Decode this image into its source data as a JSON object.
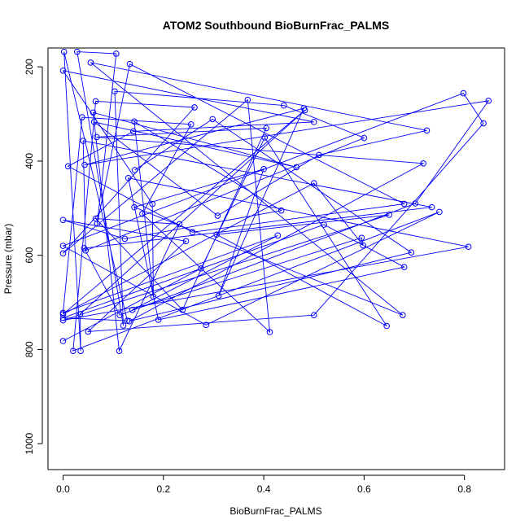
{
  "chart_data": {
    "type": "line",
    "title": "ATOM2 Southbound BioBurnFrac_PALMS",
    "xlabel": "BioBurnFrac_PALMS",
    "ylabel": "Pressure (mbar)",
    "xlim": [
      -0.03,
      0.88
    ],
    "ylim": [
      1055,
      160
    ],
    "y_reversed": true,
    "x_ticks": [
      "0.0",
      "0.2",
      "0.4",
      "0.6",
      "0.8"
    ],
    "y_ticks": [
      "200",
      "400",
      "600",
      "800",
      "1000"
    ],
    "grid": false,
    "legend": "none",
    "color": "#0000ff",
    "marker": "open-circle",
    "series": [
      {
        "points": [
          [
            0.0,
            782
          ],
          [
            0.0,
            738
          ],
          [
            0.0,
            733
          ],
          [
            0.0,
            725
          ],
          [
            0.0,
            722
          ],
          [
            0.0,
            596
          ],
          [
            0.0,
            580
          ],
          [
            0.0,
            525
          ],
          [
            0.0,
            208
          ],
          [
            0.002,
            168
          ],
          [
            0.01,
            411
          ],
          [
            0.02,
            803
          ],
          [
            0.028,
            168
          ],
          [
            0.034,
            725
          ],
          [
            0.035,
            803
          ],
          [
            0.038,
            307
          ],
          [
            0.04,
            357
          ],
          [
            0.042,
            585
          ],
          [
            0.043,
            408
          ],
          [
            0.045,
            590
          ],
          [
            0.05,
            762
          ],
          [
            0.055,
            191
          ],
          [
            0.06,
            297
          ],
          [
            0.062,
            317
          ],
          [
            0.065,
            273
          ],
          [
            0.065,
            522
          ],
          [
            0.067,
            349
          ],
          [
            0.068,
            533
          ],
          [
            0.103,
            252
          ],
          [
            0.106,
            172
          ],
          [
            0.112,
            803
          ],
          [
            0.113,
            727
          ],
          [
            0.12,
            749
          ],
          [
            0.123,
            565
          ],
          [
            0.128,
            739
          ],
          [
            0.13,
            436
          ],
          [
            0.132,
            740
          ],
          [
            0.133,
            194
          ],
          [
            0.138,
            716
          ],
          [
            0.14,
            337
          ],
          [
            0.142,
            316
          ],
          [
            0.142,
            498
          ],
          [
            0.143,
            419
          ],
          [
            0.158,
            512
          ],
          [
            0.178,
            491
          ],
          [
            0.18,
            688
          ],
          [
            0.19,
            737
          ],
          [
            0.232,
            534
          ],
          [
            0.238,
            716
          ],
          [
            0.245,
            570
          ],
          [
            0.255,
            322
          ],
          [
            0.258,
            551
          ],
          [
            0.262,
            286
          ],
          [
            0.275,
            628
          ],
          [
            0.285,
            748
          ],
          [
            0.298,
            311
          ],
          [
            0.306,
            556
          ],
          [
            0.308,
            516
          ],
          [
            0.31,
            686
          ],
          [
            0.368,
            270
          ],
          [
            0.4,
            417
          ],
          [
            0.402,
            350
          ],
          [
            0.405,
            330
          ],
          [
            0.412,
            763
          ],
          [
            0.428,
            558
          ],
          [
            0.435,
            505
          ],
          [
            0.44,
            282
          ],
          [
            0.465,
            413
          ],
          [
            0.48,
            288
          ],
          [
            0.482,
            292
          ],
          [
            0.5,
            317
          ],
          [
            0.5,
            447
          ],
          [
            0.5,
            727
          ],
          [
            0.51,
            387
          ],
          [
            0.52,
            535
          ],
          [
            0.595,
            563
          ],
          [
            0.598,
            579
          ],
          [
            0.6,
            351
          ],
          [
            0.645,
            750
          ],
          [
            0.65,
            514
          ],
          [
            0.68,
            491
          ],
          [
            0.68,
            625
          ],
          [
            0.677,
            727
          ],
          [
            0.694,
            594
          ],
          [
            0.702,
            490
          ],
          [
            0.718,
            405
          ],
          [
            0.725,
            335
          ],
          [
            0.735,
            498
          ],
          [
            0.75,
            508
          ],
          [
            0.798,
            256
          ],
          [
            0.808,
            582
          ],
          [
            0.838,
            320
          ],
          [
            0.848,
            272
          ]
        ]
      }
    ]
  }
}
